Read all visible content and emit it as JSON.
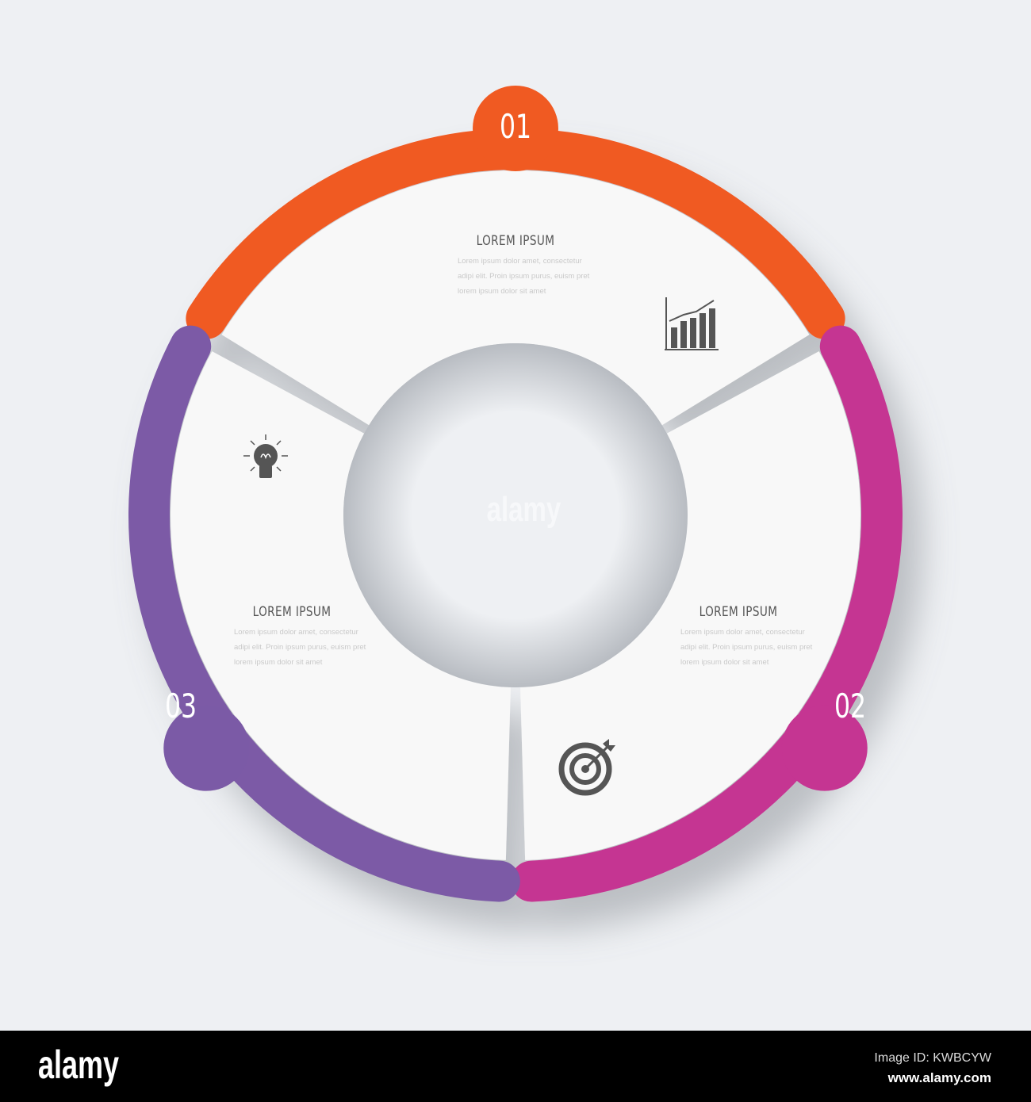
{
  "segments": [
    {
      "number": "01",
      "title": "LOREM IPSUM",
      "body": "Lorem ipsum dolor amet, consectetur adipi elit. Proin ipsum purus, euism pret lorem ipsum dolor sit amet",
      "icon": "bar-chart-icon",
      "color": "#f05a22"
    },
    {
      "number": "02",
      "title": "LOREM IPSUM",
      "body": "Lorem ipsum dolor amet, consectetur adipi elit. Proin ipsum purus, euism pret lorem ipsum dolor sit amet",
      "icon": "target-icon",
      "color": "#c53592"
    },
    {
      "number": "03",
      "title": "LOREM IPSUM",
      "body": "Lorem ipsum dolor amet, consectetur adipi elit. Proin ipsum purus, euism pret lorem ipsum dolor sit amet",
      "icon": "lightbulb-icon",
      "color": "#7b5aa6"
    }
  ],
  "watermark": "alamy",
  "footer": {
    "logo": "alamy",
    "image_id": "Image ID: KWBCYW",
    "url": "www.alamy.com"
  }
}
